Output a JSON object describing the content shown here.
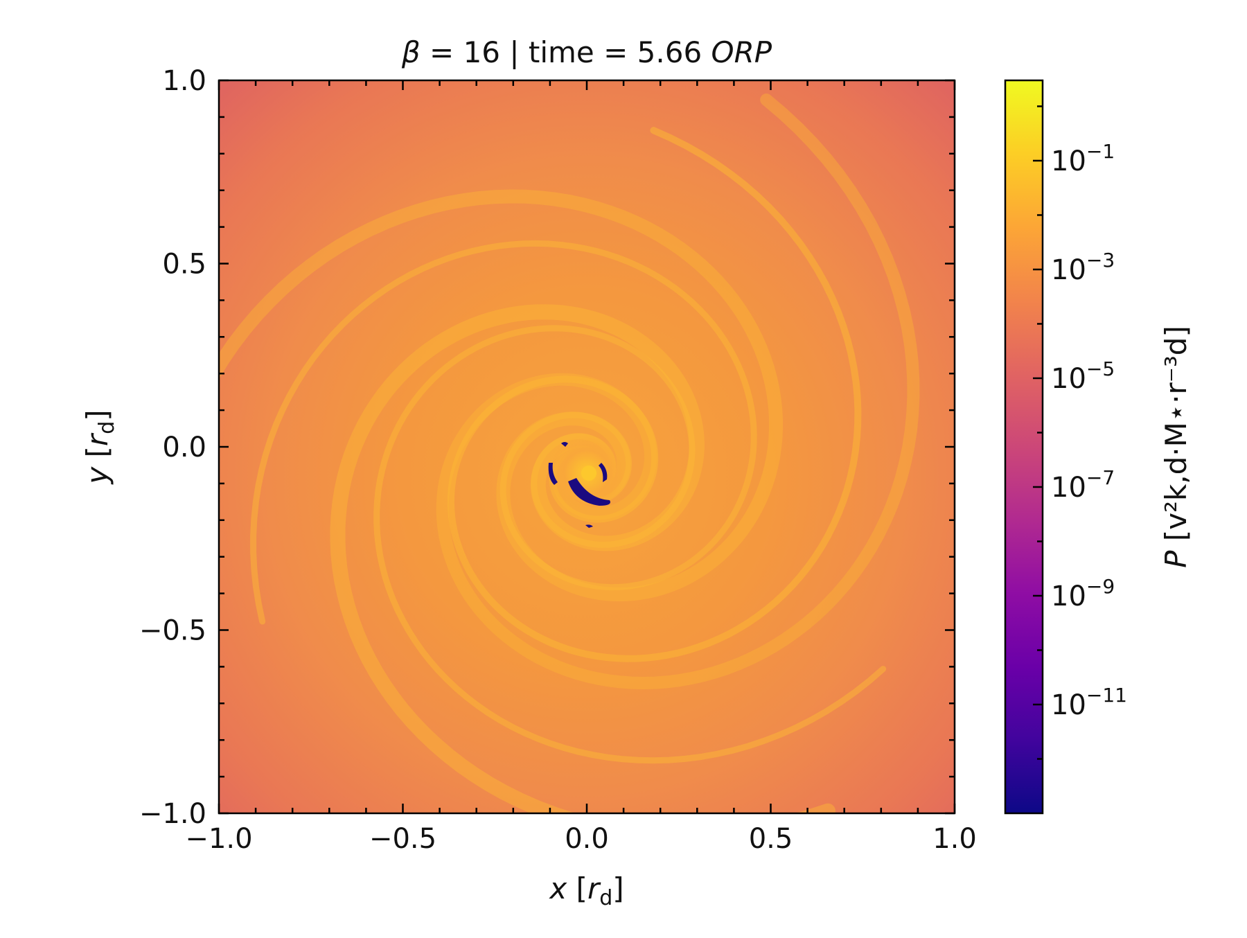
{
  "chart_data": {
    "type": "heatmap",
    "title": {
      "beta_symbol": "β",
      "beta_rest": " = 16 | time = 5.66 ",
      "time_unit": "ORP"
    },
    "xlabel": {
      "var": "x",
      "open": " [",
      "unit": "r",
      "sub": "d",
      "close": "]"
    },
    "ylabel": {
      "var": "y",
      "open": " [",
      "unit": "r",
      "sub": "d",
      "close": "]"
    },
    "xlim": [
      -1.0,
      1.0
    ],
    "ylim": [
      -1.0,
      1.0
    ],
    "xticks": [
      -1.0,
      -0.5,
      0.0,
      0.5,
      1.0
    ],
    "yticks": [
      -1.0,
      -0.5,
      0.0,
      0.5,
      1.0
    ],
    "xtick_labels": [
      "−1.0",
      "−0.5",
      "0.0",
      "0.5",
      "1.0"
    ],
    "ytick_labels": [
      "−1.0",
      "−0.5",
      "0.0",
      "0.5",
      "1.0"
    ],
    "colorbar": {
      "scale": "log",
      "colormap": "plasma",
      "range": [
        1e-13,
        3
      ],
      "tick_values": [
        1e-11,
        1e-09,
        1e-07,
        1e-05,
        0.001,
        0.1
      ],
      "tick_bases": [
        "10",
        "10",
        "10",
        "10",
        "10",
        "10"
      ],
      "tick_exponents": [
        "−11",
        "−9",
        "−7",
        "−5",
        "−3",
        "−1"
      ],
      "label": {
        "var": "P",
        "text": " [v²k,d·M⋆·r⁻³d]"
      }
    },
    "field_description_colors": {
      "background": "#e0685f",
      "mid": "#f0904a",
      "bright": "#fbb437",
      "low": "#1b0a80"
    },
    "center_x": 0.0,
    "center_y": -0.07
  }
}
